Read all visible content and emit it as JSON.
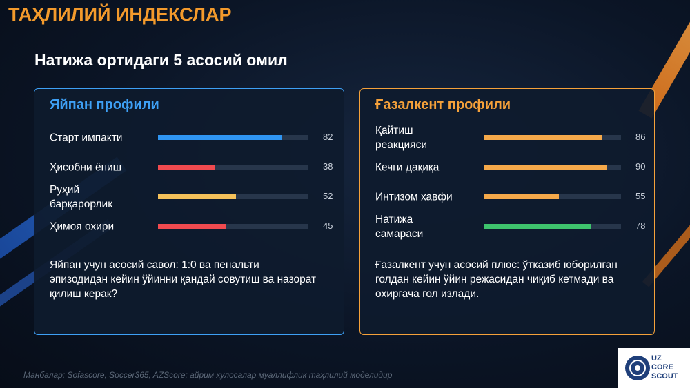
{
  "header": {
    "title": "ТАҲЛИЛИЙ ИНДЕКСЛАР",
    "subtitle": "Натижа ортидаги 5 асосий омил"
  },
  "panels": [
    {
      "title": "Яйпан профили",
      "accent": "#3ea0f5",
      "xlim": [
        0,
        100
      ],
      "metrics": [
        {
          "label": "Старт импакти",
          "value": 82,
          "color": "#2f95f2"
        },
        {
          "label": "Ҳисобни ёпиш",
          "value": 38,
          "color": "#f04a4f"
        },
        {
          "label": "Руҳий барқарорлик",
          "value": 52,
          "color": "#f4c15a"
        },
        {
          "label": "Ҳимоя охири",
          "value": 45,
          "color": "#f04a4f"
        }
      ],
      "note": "Яйпан учун асосий савол: 1:0 ва пенальти эпизодидан кейин ўйинни қандай совутиш ва назорат қилиш керак?"
    },
    {
      "title": "Ғазалкент профили",
      "accent": "#f5a13a",
      "xlim": [
        0,
        100
      ],
      "metrics": [
        {
          "label": "Қайтиш реакцияси",
          "value": 86,
          "color": "#f5a94a"
        },
        {
          "label": "Кечги дақиқа",
          "value": 90,
          "color": "#f5a94a"
        },
        {
          "label": "Интизом хавфи",
          "value": 55,
          "color": "#f5a94a"
        },
        {
          "label": "Натижа самараси",
          "value": 78,
          "color": "#3ec46d"
        }
      ],
      "note": "Ғазалкент учун асосий плюс: ўтказиб юборилган голдан кейин ўйин режасидан чиқиб кетмади ва охиргача гол излади."
    }
  ],
  "footer": {
    "source": "Манбалар: Sofascore, Soccer365, AZScore; айрим хулосалар муаллифлик таҳлилий моделидир"
  },
  "logo": {
    "lines": [
      "UZ",
      "CORE",
      "SCOUT"
    ]
  }
}
